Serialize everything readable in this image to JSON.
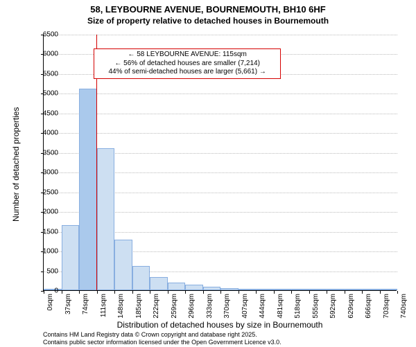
{
  "title": "58, LEYBOURNE AVENUE, BOURNEMOUTH, BH10 6HF",
  "subtitle": "Size of property relative to detached houses in Bournemouth",
  "chart": {
    "type": "histogram",
    "ylabel": "Number of detached properties",
    "xlabel": "Distribution of detached houses by size in Bournemouth",
    "ylim": [
      0,
      6500
    ],
    "ytick_step": 500,
    "xtick_step": 37,
    "xtick_unit": "sqm",
    "xtick_count": 21,
    "grid_color": "#bbbbbb",
    "axis_color": "#000000",
    "background_color": "#ffffff",
    "label_fontsize": 12,
    "tick_fontsize": 10,
    "bars": [
      {
        "value": 25,
        "fill": "#cddff2",
        "border": "#88aee0"
      },
      {
        "value": 1650,
        "fill": "#cddff2",
        "border": "#88aee0"
      },
      {
        "value": 5120,
        "fill": "#aac9ec",
        "border": "#88aee0"
      },
      {
        "value": 3600,
        "fill": "#cddff2",
        "border": "#88aee0"
      },
      {
        "value": 1280,
        "fill": "#cddff2",
        "border": "#88aee0"
      },
      {
        "value": 620,
        "fill": "#cddff2",
        "border": "#88aee0"
      },
      {
        "value": 330,
        "fill": "#cddff2",
        "border": "#88aee0"
      },
      {
        "value": 200,
        "fill": "#cddff2",
        "border": "#88aee0"
      },
      {
        "value": 140,
        "fill": "#cddff2",
        "border": "#88aee0"
      },
      {
        "value": 80,
        "fill": "#cddff2",
        "border": "#88aee0"
      },
      {
        "value": 55,
        "fill": "#cddff2",
        "border": "#88aee0"
      },
      {
        "value": 35,
        "fill": "#cddff2",
        "border": "#88aee0"
      },
      {
        "value": 25,
        "fill": "#cddff2",
        "border": "#88aee0"
      },
      {
        "value": 15,
        "fill": "#cddff2",
        "border": "#88aee0"
      },
      {
        "value": 10,
        "fill": "#cddff2",
        "border": "#88aee0"
      },
      {
        "value": 8,
        "fill": "#cddff2",
        "border": "#88aee0"
      },
      {
        "value": 6,
        "fill": "#cddff2",
        "border": "#88aee0"
      },
      {
        "value": 5,
        "fill": "#cddff2",
        "border": "#88aee0"
      },
      {
        "value": 4,
        "fill": "#cddff2",
        "border": "#88aee0"
      },
      {
        "value": 3,
        "fill": "#cddff2",
        "border": "#88aee0"
      }
    ],
    "marker": {
      "x_value": 115,
      "x_max": 770,
      "color": "#d40000"
    },
    "callout": {
      "border_color": "#d40000",
      "lines": [
        "← 58 LEYBOURNE AVENUE: 115sqm",
        "← 56% of detached houses are smaller (7,214)",
        "44% of semi-detached houses are larger (5,661) →"
      ]
    }
  },
  "footnote": {
    "line1": "Contains HM Land Registry data © Crown copyright and database right 2025.",
    "line2": "Contains public sector information licensed under the Open Government Licence v3.0."
  }
}
